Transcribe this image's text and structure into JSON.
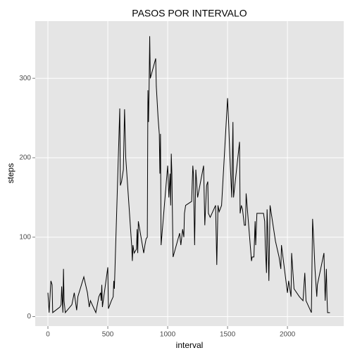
{
  "chart_data": {
    "type": "line",
    "title": "PASOS POR INTERVALO",
    "x_label": "interval",
    "y_label": "steps",
    "series": [
      {
        "color": "#000000",
        "x": [
          0,
          10,
          25,
          35,
          40,
          100,
          110,
          115,
          125,
          130,
          135,
          145,
          200,
          220,
          240,
          250,
          300,
          330,
          345,
          355,
          400,
          425,
          440,
          445,
          450,
          455,
          500,
          505,
          530,
          545,
          550,
          555,
          600,
          605,
          615,
          630,
          640,
          650,
          700,
          705,
          710,
          720,
          740,
          745,
          750,
          755,
          800,
          810,
          820,
          830,
          835,
          840,
          845,
          850,
          855,
          900,
          905,
          920,
          930,
          935,
          940,
          945,
          1000,
          1010,
          1020,
          1025,
          1030,
          1035,
          1045,
          1100,
          1110,
          1125,
          1135,
          1140,
          1150,
          1200,
          1210,
          1215,
          1225,
          1235,
          1250,
          1300,
          1310,
          1325,
          1335,
          1340,
          1355,
          1400,
          1410,
          1420,
          1430,
          1450,
          1500,
          1510,
          1520,
          1535,
          1545,
          1550,
          1600,
          1605,
          1615,
          1625,
          1640,
          1650,
          1655,
          1700,
          1705,
          1720,
          1730,
          1735,
          1745,
          1800,
          1810,
          1815,
          1825,
          1830,
          1835,
          1845,
          1855,
          1900,
          1915,
          1930,
          1945,
          1950,
          2000,
          2010,
          2030,
          2035,
          2055,
          2100,
          2130,
          2145,
          2155,
          2200,
          2210,
          2220,
          2230,
          2245,
          2250,
          2305,
          2315,
          2325,
          2330,
          2335,
          2345,
          2355
        ],
        "values": [
          30,
          5,
          45,
          40,
          5,
          12,
          15,
          38,
          5,
          60,
          20,
          5,
          15,
          30,
          8,
          25,
          50,
          30,
          12,
          20,
          5,
          25,
          30,
          20,
          40,
          12,
          62,
          10,
          20,
          25,
          45,
          35,
          262,
          165,
          170,
          185,
          261,
          200,
          88,
          70,
          90,
          80,
          85,
          110,
          80,
          120,
          80,
          90,
          98,
          100,
          285,
          245,
          290,
          353,
          300,
          325,
          290,
          250,
          230,
          180,
          230,
          90,
          190,
          150,
          180,
          140,
          205,
          180,
          75,
          105,
          90,
          110,
          100,
          130,
          140,
          145,
          190,
          180,
          90,
          185,
          150,
          190,
          115,
          165,
          170,
          130,
          125,
          140,
          65,
          140,
          132,
          140,
          275,
          240,
          200,
          150,
          245,
          150,
          220,
          130,
          140,
          135,
          115,
          115,
          155,
          70,
          75,
          75,
          120,
          90,
          130,
          130,
          120,
          90,
          55,
          135,
          110,
          45,
          140,
          95,
          85,
          75,
          60,
          90,
          30,
          45,
          25,
          80,
          35,
          25,
          20,
          55,
          20,
          5,
          123,
          95,
          60,
          25,
          40,
          80,
          20,
          60,
          25,
          5,
          5,
          5
        ]
      }
    ],
    "xlim": [
      -106,
      2470
    ],
    "ylim": [
      -12,
      372
    ],
    "xticks": [
      0,
      500,
      1000,
      1500,
      2000
    ],
    "yticks": [
      0,
      100,
      200,
      300
    ],
    "grid": true
  }
}
